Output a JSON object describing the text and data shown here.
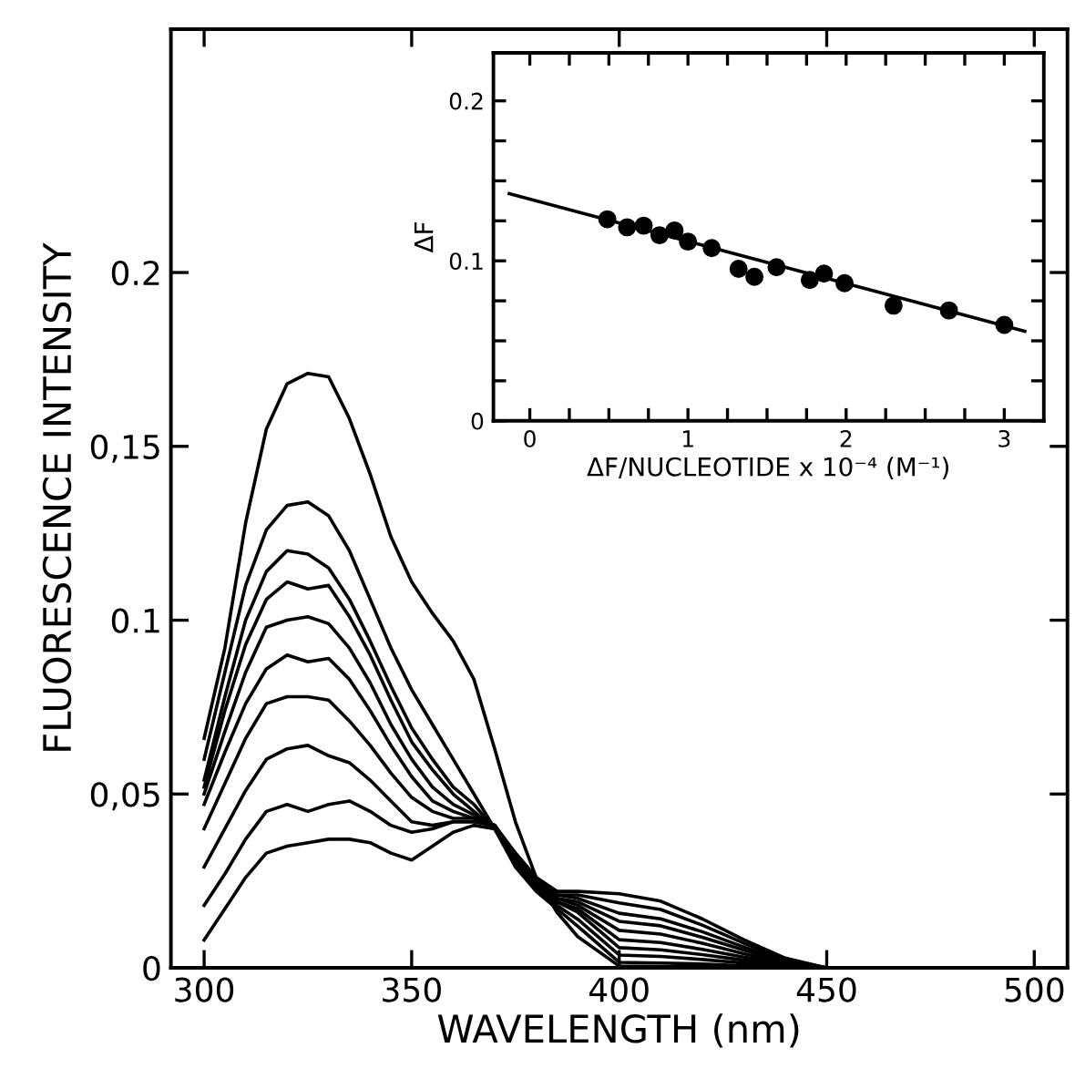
{
  "chart_data": [
    {
      "type": "line",
      "xlabel": "WAVELENGTH (nm)",
      "ylabel": "FLUORESCENCE INTENSITY",
      "x": [
        300,
        305,
        310,
        315,
        320,
        325,
        330,
        335,
        340,
        345,
        350,
        355,
        360,
        365,
        370,
        375,
        380,
        385,
        390,
        400,
        410,
        420,
        430,
        440,
        450
      ],
      "xlim": [
        292,
        508
      ],
      "ylim": [
        0,
        0.27
      ],
      "xticks": [
        300,
        350,
        400,
        450,
        500
      ],
      "yticks": [
        0,
        {
          "value": 0.05,
          "label": "0,05"
        },
        0.1,
        {
          "value": 0.15,
          "label": "0,15"
        },
        0.2
      ],
      "grid": false,
      "marker": "none",
      "line_style": "solid",
      "series": [
        {
          "color": "#000000",
          "values": [
            0.066,
            0.092,
            0.128,
            0.155,
            0.168,
            0.171,
            0.17,
            0.158,
            0.142,
            0.124,
            0.111,
            0.102,
            0.094,
            0.083,
            0.063,
            0.042,
            0.026,
            0.016,
            0.009,
            0.0005,
            0.0004,
            0.0003,
            0.0002,
            0.0001,
            0
          ]
        },
        {
          "color": "#000000",
          "values": [
            0.06,
            0.085,
            0.11,
            0.126,
            0.133,
            0.134,
            0.13,
            0.12,
            0.106,
            0.092,
            0.08,
            0.07,
            0.06,
            0.05,
            0.04,
            0.029,
            0.022,
            0.017,
            0.012,
            0.0016,
            0.0014,
            0.0011,
            0.0006,
            0.0002,
            0
          ]
        },
        {
          "color": "#000000",
          "values": [
            0.054,
            0.078,
            0.1,
            0.114,
            0.12,
            0.119,
            0.115,
            0.106,
            0.094,
            0.081,
            0.069,
            0.06,
            0.052,
            0.047,
            0.04,
            0.03,
            0.023,
            0.018,
            0.014,
            0.0037,
            0.0033,
            0.0024,
            0.0014,
            0.0005,
            0
          ]
        },
        {
          "color": "#000000",
          "values": [
            0.052,
            0.074,
            0.093,
            0.106,
            0.111,
            0.109,
            0.11,
            0.101,
            0.09,
            0.077,
            0.065,
            0.057,
            0.05,
            0.045,
            0.04,
            0.03,
            0.023,
            0.019,
            0.016,
            0.0058,
            0.0052,
            0.0038,
            0.0022,
            0.0008,
            0
          ]
        },
        {
          "color": "#000000",
          "values": [
            0.05,
            0.068,
            0.085,
            0.098,
            0.1,
            0.101,
            0.099,
            0.092,
            0.082,
            0.07,
            0.06,
            0.052,
            0.047,
            0.044,
            0.04,
            0.031,
            0.024,
            0.019,
            0.017,
            0.0081,
            0.0073,
            0.0053,
            0.0031,
            0.0011,
            0
          ]
        },
        {
          "color": "#000000",
          "values": [
            0.047,
            0.062,
            0.076,
            0.086,
            0.09,
            0.088,
            0.089,
            0.083,
            0.074,
            0.064,
            0.055,
            0.048,
            0.045,
            0.043,
            0.041,
            0.031,
            0.024,
            0.02,
            0.018,
            0.0108,
            0.0097,
            0.0071,
            0.0041,
            0.0014,
            0
          ]
        },
        {
          "color": "#000000",
          "values": [
            0.04,
            0.053,
            0.066,
            0.076,
            0.078,
            0.078,
            0.077,
            0.071,
            0.064,
            0.056,
            0.049,
            0.045,
            0.043,
            0.043,
            0.041,
            0.032,
            0.025,
            0.02,
            0.019,
            0.0134,
            0.0121,
            0.0088,
            0.0051,
            0.0017,
            0
          ]
        },
        {
          "color": "#000000",
          "values": [
            0.029,
            0.04,
            0.051,
            0.06,
            0.063,
            0.064,
            0.061,
            0.059,
            0.054,
            0.048,
            0.042,
            0.041,
            0.042,
            0.042,
            0.041,
            0.032,
            0.025,
            0.021,
            0.02,
            0.0157,
            0.0141,
            0.0104,
            0.006,
            0.002,
            0
          ]
        },
        {
          "color": "#000000",
          "values": [
            0.018,
            0.027,
            0.037,
            0.045,
            0.047,
            0.045,
            0.047,
            0.048,
            0.045,
            0.041,
            0.039,
            0.04,
            0.042,
            0.042,
            0.041,
            0.033,
            0.026,
            0.021,
            0.021,
            0.0187,
            0.0168,
            0.0123,
            0.0071,
            0.0024,
            0
          ]
        },
        {
          "color": "#000000",
          "values": [
            0.008,
            0.017,
            0.026,
            0.033,
            0.035,
            0.036,
            0.037,
            0.037,
            0.036,
            0.033,
            0.031,
            0.035,
            0.039,
            0.041,
            0.04,
            0.033,
            0.026,
            0.022,
            0.022,
            0.0213,
            0.0192,
            0.0141,
            0.0081,
            0.0028,
            0
          ]
        }
      ]
    },
    {
      "type": "scatter",
      "xlabel": "ΔF/NUCLEOTIDE x 10⁻⁴ (M⁻¹)",
      "ylabel": "ΔF",
      "xlim": [
        -0.23,
        3.25
      ],
      "ylim": [
        0,
        0.23
      ],
      "xticks": [
        0,
        {
          "value": 0.25,
          "label": null
        },
        {
          "value": 0.5,
          "label": null
        },
        {
          "value": 0.75,
          "label": null
        },
        1,
        {
          "value": 1.25,
          "label": null
        },
        {
          "value": 1.5,
          "label": null
        },
        {
          "value": 1.75,
          "label": null
        },
        2,
        {
          "value": 2.25,
          "label": null
        },
        {
          "value": 2.5,
          "label": null
        },
        {
          "value": 2.75,
          "label": null
        },
        3
      ],
      "yticks": [
        0,
        {
          "value": 0.025,
          "label": null
        },
        {
          "value": 0.05,
          "label": null
        },
        {
          "value": 0.075,
          "label": null
        },
        0.1,
        {
          "value": 0.125,
          "label": null
        },
        {
          "value": 0.15,
          "label": null
        },
        {
          "value": 0.175,
          "label": null
        },
        0.2
      ],
      "grid": false,
      "series": [
        {
          "type": "scatter",
          "marker": "circle",
          "color": "#000000",
          "x": [
            0.49,
            0.615,
            0.72,
            0.82,
            0.915,
            1.0,
            1.15,
            1.32,
            1.42,
            1.56,
            1.77,
            1.86,
            1.99,
            2.3,
            2.65,
            3.0
          ],
          "values": [
            0.126,
            0.121,
            0.122,
            0.116,
            0.119,
            0.112,
            0.108,
            0.095,
            0.09,
            0.096,
            0.088,
            0.092,
            0.086,
            0.072,
            0.069,
            0.06
          ]
        },
        {
          "type": "line",
          "marker": "none",
          "color": "#000000",
          "x": [
            -0.13,
            3.13
          ],
          "values": [
            0.142,
            0.056
          ]
        }
      ]
    }
  ]
}
